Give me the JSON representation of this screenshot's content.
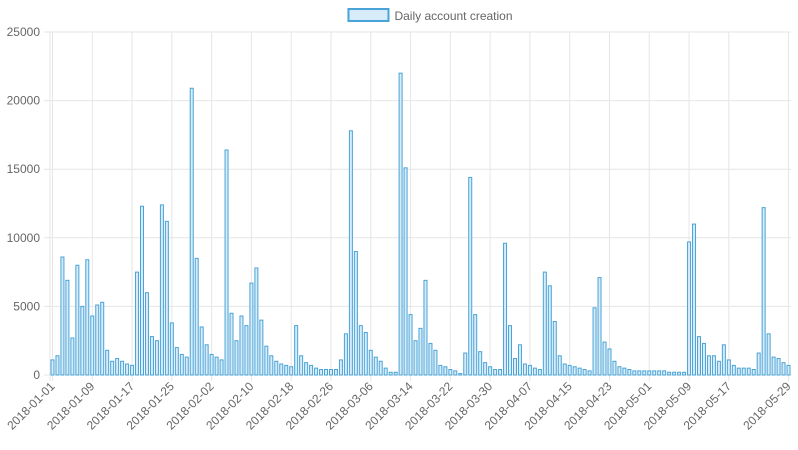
{
  "chart_data": {
    "type": "bar",
    "categories": [
      "2018-01-01",
      null,
      null,
      null,
      null,
      null,
      null,
      null,
      "2018-01-09",
      null,
      null,
      null,
      null,
      null,
      null,
      null,
      "2018-01-17",
      null,
      null,
      null,
      null,
      null,
      null,
      null,
      "2018-01-25",
      null,
      null,
      null,
      null,
      null,
      null,
      null,
      "2018-02-02",
      null,
      null,
      null,
      null,
      null,
      null,
      null,
      "2018-02-10",
      null,
      null,
      null,
      null,
      null,
      null,
      null,
      "2018-02-18",
      null,
      null,
      null,
      null,
      null,
      null,
      null,
      "2018-02-26",
      null,
      null,
      null,
      null,
      null,
      null,
      null,
      "2018-03-06",
      null,
      null,
      null,
      null,
      null,
      null,
      null,
      "2018-03-14",
      null,
      null,
      null,
      null,
      null,
      null,
      null,
      "2018-03-22",
      null,
      null,
      null,
      null,
      null,
      null,
      null,
      "2018-03-30",
      null,
      null,
      null,
      null,
      null,
      null,
      null,
      "2018-04-07",
      null,
      null,
      null,
      null,
      null,
      null,
      null,
      "2018-04-15",
      null,
      null,
      null,
      null,
      null,
      null,
      null,
      "2018-04-23",
      null,
      null,
      null,
      null,
      null,
      null,
      null,
      "2018-05-01",
      null,
      null,
      null,
      null,
      null,
      null,
      null,
      "2018-05-09",
      null,
      null,
      null,
      null,
      null,
      null,
      null,
      "2018-05-17",
      null,
      null,
      null,
      null,
      null,
      null,
      null,
      null,
      null,
      null,
      null,
      "2018-05-29"
    ],
    "series": [
      {
        "name": "Daily account creation",
        "color": "#d7ecfb",
        "border_color": "#4aa3d6",
        "values": [
          1100,
          1400,
          8600,
          6900,
          2700,
          8000,
          5000,
          8400,
          4300,
          5100,
          5300,
          1800,
          1000,
          1200,
          1000,
          800,
          700,
          7500,
          12300,
          6000,
          2800,
          2500,
          12400,
          11200,
          3800,
          2000,
          1500,
          1300,
          20900,
          8500,
          3500,
          2200,
          1500,
          1300,
          1100,
          16400,
          4500,
          2500,
          4300,
          3600,
          6700,
          7800,
          4000,
          2100,
          1400,
          1000,
          800,
          700,
          600,
          3600,
          1400,
          900,
          700,
          500,
          400,
          400,
          400,
          400,
          1100,
          3000,
          17800,
          9000,
          3600,
          3100,
          1800,
          1300,
          1000,
          500,
          200,
          200,
          22000,
          15100,
          4400,
          2500,
          3400,
          6900,
          2300,
          1800,
          700,
          600,
          400,
          300,
          100,
          1600,
          14400,
          4400,
          1700,
          900,
          600,
          400,
          400,
          9600,
          3600,
          1200,
          2200,
          800,
          700,
          500,
          400,
          7500,
          6500,
          3900,
          1400,
          800,
          700,
          600,
          500,
          400,
          300,
          4900,
          7100,
          2400,
          1900,
          1000,
          600,
          500,
          400,
          300,
          300,
          300,
          300,
          300,
          300,
          300,
          200,
          200,
          200,
          200,
          9700,
          11000,
          2800,
          2300,
          1400,
          1400,
          1000,
          2200,
          1100,
          700,
          500,
          500,
          500,
          400,
          1600,
          12200,
          3000,
          1300,
          1200,
          900,
          700
        ]
      }
    ],
    "ylim": [
      0,
      25000
    ],
    "yticks": [
      0,
      5000,
      10000,
      15000,
      20000,
      25000
    ],
    "grid": true,
    "legend": "top"
  }
}
